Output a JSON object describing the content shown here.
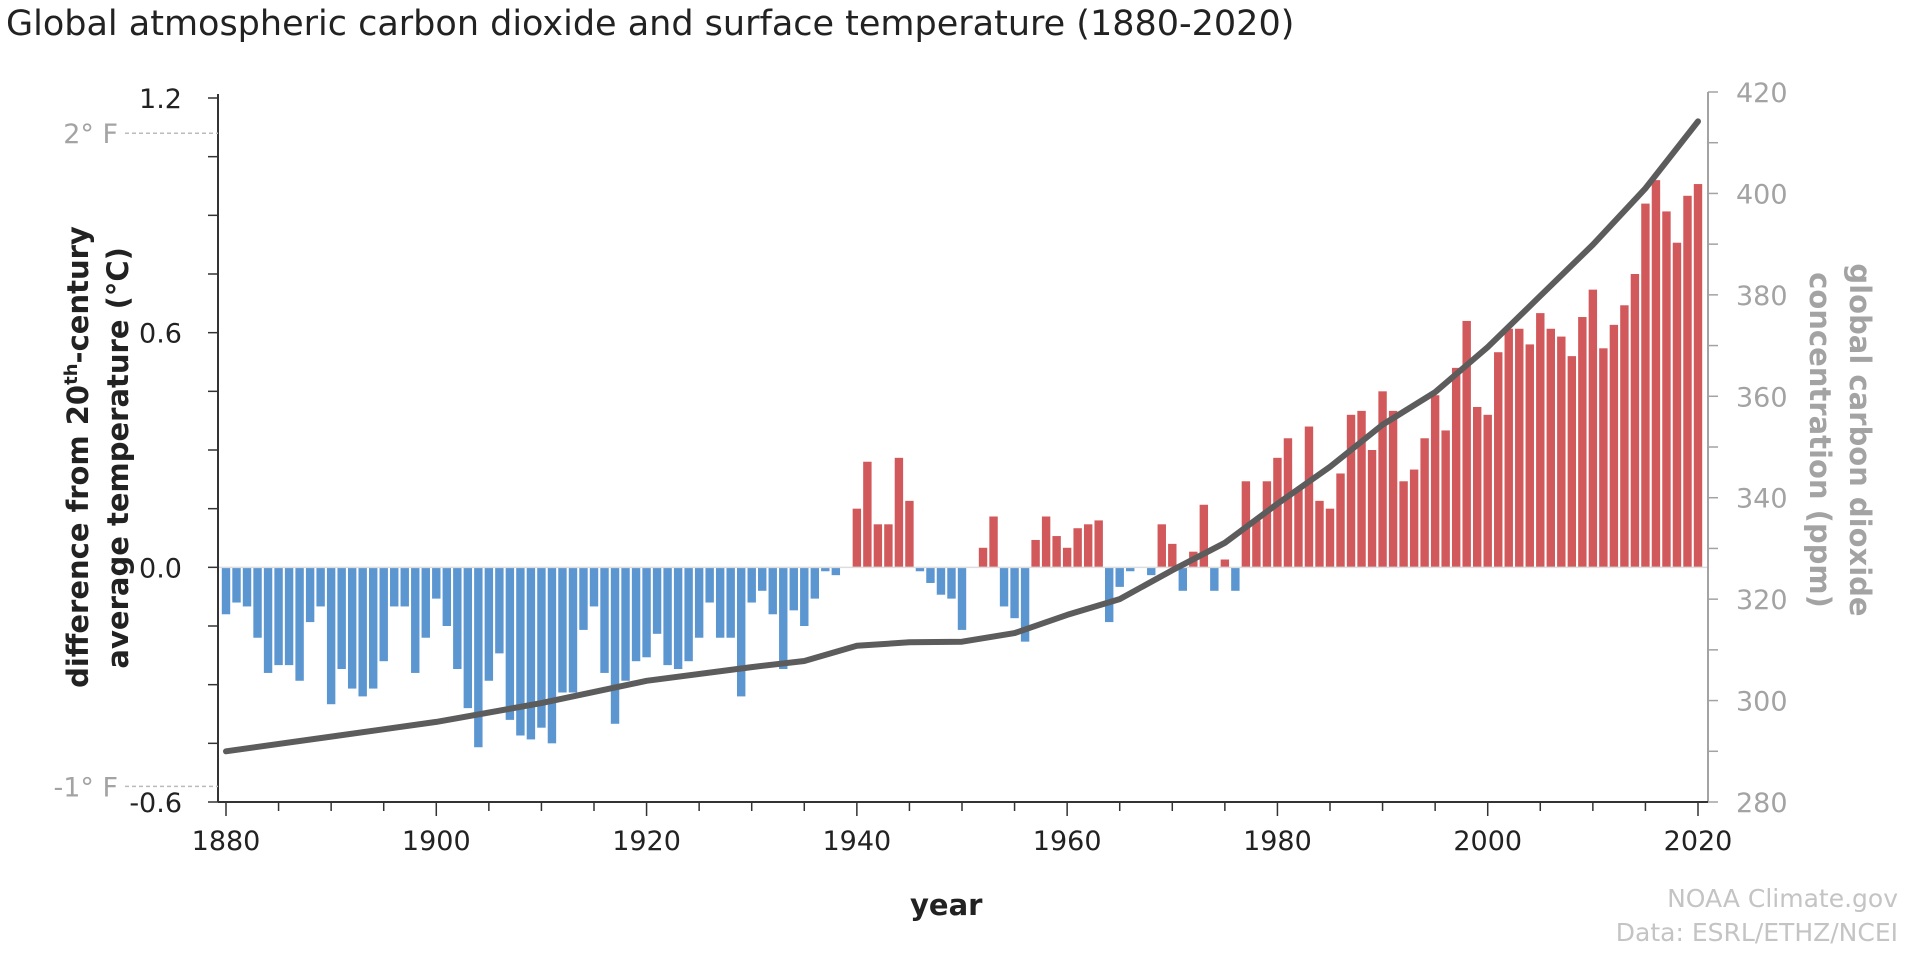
{
  "title": "Global atmospheric carbon dioxide and surface temperature (1880-2020)",
  "credit": {
    "line1": "NOAA Climate.gov",
    "line2": "Data: ESRL/ETHZ/NCEI"
  },
  "colors": {
    "positive": "#d2595b",
    "negative": "#5b96d0",
    "co2_line": "#5c5c5c",
    "secondary_text": "#a3a3a3"
  },
  "chart_data": {
    "type": "bar+line",
    "title": "Global atmospheric carbon dioxide and surface temperature (1880-2020)",
    "xlabel": "year",
    "ylabel": {
      "line1_pre": "difference from 20",
      "sup": "th",
      "line1_post": "-century",
      "line2": "average  temperature (°C)"
    },
    "y2label": {
      "line1": "global carbon dioxide",
      "line2": "concentration (ppm)"
    },
    "xlim": [
      1880,
      2020
    ],
    "ylim": [
      -0.6,
      1.2
    ],
    "y2lim": [
      280,
      420
    ],
    "x_ticks": [
      "1880",
      "1900",
      "1920",
      "1940",
      "1960",
      "1980",
      "2000",
      "2020"
    ],
    "y_ticks": [
      "-0.6",
      "0.0",
      "0.6",
      "1.2"
    ],
    "y2_ticks": [
      "280",
      "300",
      "320",
      "340",
      "360",
      "380",
      "400",
      "420"
    ],
    "fahrenheit_markers": [
      {
        "label": "2° F",
        "value_c": 1.11
      },
      {
        "label": "-1° F",
        "value_c": -0.56
      }
    ],
    "temperature_anomaly": {
      "start_year": 1880,
      "values": [
        -0.12,
        -0.09,
        -0.1,
        -0.18,
        -0.27,
        -0.25,
        -0.25,
        -0.29,
        -0.14,
        -0.1,
        -0.35,
        -0.26,
        -0.31,
        -0.33,
        -0.31,
        -0.24,
        -0.1,
        -0.1,
        -0.27,
        -0.18,
        -0.08,
        -0.15,
        -0.26,
        -0.36,
        -0.46,
        -0.29,
        -0.22,
        -0.39,
        -0.43,
        -0.44,
        -0.41,
        -0.45,
        -0.32,
        -0.32,
        -0.16,
        -0.1,
        -0.27,
        -0.4,
        -0.29,
        -0.24,
        -0.23,
        -0.17,
        -0.25,
        -0.26,
        -0.24,
        -0.18,
        -0.09,
        -0.18,
        -0.18,
        -0.33,
        -0.09,
        -0.06,
        -0.12,
        -0.26,
        -0.11,
        -0.15,
        -0.08,
        -0.01,
        -0.02,
        0.0,
        0.15,
        0.27,
        0.11,
        0.11,
        0.28,
        0.17,
        -0.01,
        -0.04,
        -0.07,
        -0.08,
        -0.16,
        0.0,
        0.05,
        0.13,
        -0.1,
        -0.13,
        -0.19,
        0.07,
        0.13,
        0.08,
        0.05,
        0.1,
        0.11,
        0.12,
        -0.14,
        -0.05,
        -0.01,
        0.0,
        -0.02,
        0.11,
        0.06,
        -0.06,
        0.04,
        0.16,
        -0.06,
        0.02,
        -0.06,
        0.22,
        0.12,
        0.22,
        0.28,
        0.33,
        0.2,
        0.36,
        0.17,
        0.15,
        0.24,
        0.39,
        0.4,
        0.3,
        0.45,
        0.4,
        0.22,
        0.25,
        0.33,
        0.44,
        0.35,
        0.51,
        0.63,
        0.41,
        0.39,
        0.55,
        0.61,
        0.61,
        0.57,
        0.65,
        0.61,
        0.59,
        0.54,
        0.64,
        0.71,
        0.56,
        0.62,
        0.67,
        0.75,
        0.93,
        0.99,
        0.91,
        0.83,
        0.95,
        0.98
      ]
    },
    "co2_ppm": {
      "years": [
        1880,
        1890,
        1900,
        1910,
        1920,
        1930,
        1935,
        1940,
        1945,
        1950,
        1955,
        1960,
        1965,
        1970,
        1975,
        1980,
        1985,
        1990,
        1995,
        2000,
        2005,
        2010,
        2015,
        2020
      ],
      "values": [
        290.0,
        292.9,
        295.8,
        299.5,
        303.9,
        306.6,
        307.8,
        310.8,
        311.5,
        311.6,
        313.3,
        316.9,
        320.0,
        325.7,
        331.1,
        338.8,
        346.1,
        354.4,
        360.8,
        369.7,
        379.8,
        389.9,
        401.0,
        414.2
      ]
    }
  }
}
